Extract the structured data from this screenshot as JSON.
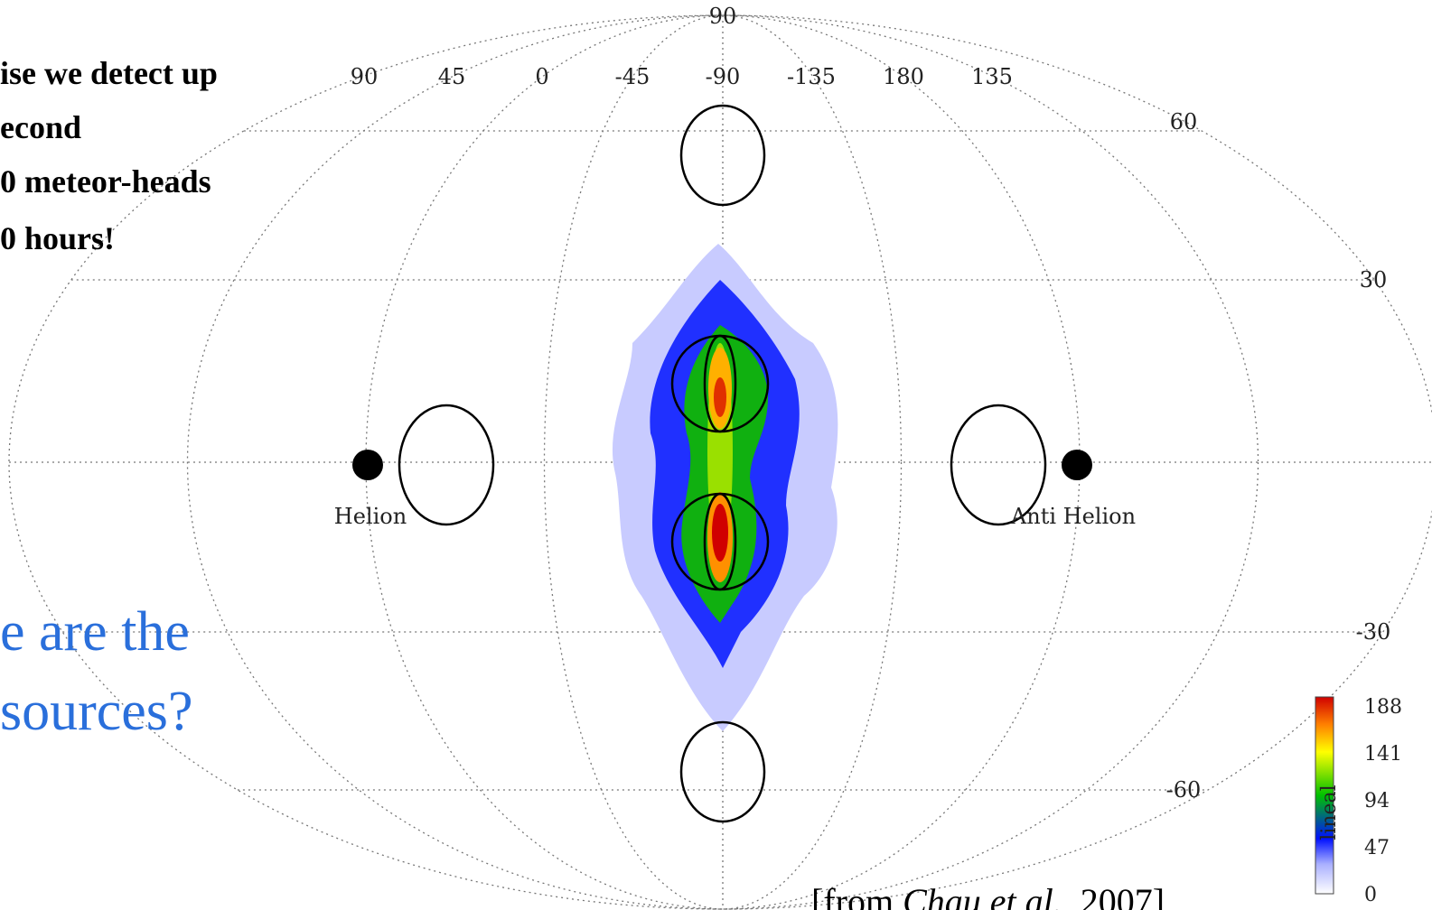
{
  "slide": {
    "left_text": [
      "ise we detect up",
      "econd",
      "0 meteor-heads",
      "0 hours!"
    ],
    "question": [
      "e are the",
      "sources?"
    ],
    "citation": {
      "open": "[from ",
      "authors": "Chau et al.",
      "close": ", 2007]"
    }
  },
  "figure": {
    "pole_label": "90",
    "longitude_labels": [
      "90",
      "45",
      "0",
      "-45",
      "-90",
      "-135",
      "180",
      "135"
    ],
    "latitude_labels": [
      "60",
      "30",
      "-30",
      "-60"
    ],
    "helion": "Helion",
    "anti_helion": "Anti Helion",
    "colorbar": {
      "label": "lineal",
      "ticks": [
        188,
        141,
        94,
        47,
        0
      ]
    }
  }
}
